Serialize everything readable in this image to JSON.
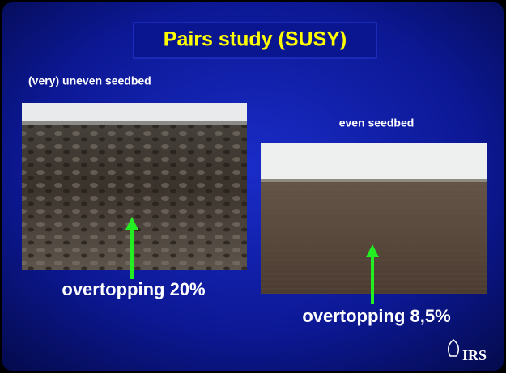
{
  "header": {
    "title": "Pairs study (SUSY)"
  },
  "left": {
    "caption": "(very) uneven seedbed",
    "label": "overtopping 20%"
  },
  "right": {
    "caption": "even seedbed",
    "label": "overtopping 8,5%"
  },
  "logo": "IRS"
}
